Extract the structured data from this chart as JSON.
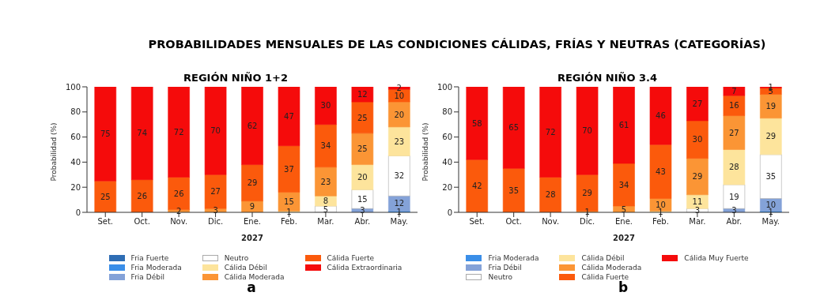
{
  "chart_data": [
    {
      "type": "bar",
      "title": "REGIÓN NIÑO 1+2",
      "xlabel": "2027",
      "ylabel": "Probabilidad (%)",
      "stacked": true,
      "data_labels": true,
      "legend": "bottom",
      "ylim": [
        0,
        100
      ],
      "yticks": [
        0,
        20,
        40,
        60,
        80,
        100
      ],
      "categories": [
        "Set.",
        "Oct.",
        "Nov.",
        "Dic.",
        "Ene.",
        "Feb.",
        "Mar.",
        "Abr.",
        "May."
      ],
      "annotations": [
        "PROBABILIDADES MENSUALES DE LAS CONDICIONES CÁLIDAS, FRÍAS Y NEUTRAS (CATEGORÍAS)",
        "a"
      ],
      "series": [
        {
          "name": "Fria Fuerte",
          "color": "#2e6db4",
          "values": [
            null,
            null,
            null,
            null,
            null,
            null,
            null,
            null,
            null
          ]
        },
        {
          "name": "Fria Moderada",
          "color": "#3a8ee8",
          "values": [
            null,
            null,
            null,
            null,
            null,
            null,
            null,
            null,
            1
          ]
        },
        {
          "name": "Fria Débil",
          "color": "#84a2d8",
          "values": [
            null,
            null,
            null,
            null,
            null,
            null,
            null,
            3,
            12
          ]
        },
        {
          "name": "Neutro",
          "color": "#ffffff",
          "values": [
            null,
            null,
            null,
            null,
            null,
            null,
            5,
            15,
            32
          ]
        },
        {
          "name": "Cálida Débil",
          "color": "#fde49c",
          "values": [
            null,
            null,
            null,
            null,
            null,
            1,
            8,
            20,
            23
          ]
        },
        {
          "name": "Cálida Moderada",
          "color": "#fb9535",
          "values": [
            null,
            null,
            2,
            3,
            9,
            15,
            23,
            25,
            20
          ]
        },
        {
          "name": "Cálida Fuerte",
          "color": "#fb5a0c",
          "values": [
            25,
            26,
            26,
            27,
            29,
            37,
            34,
            25,
            10
          ]
        },
        {
          "name": "Cálida Extraordinaria",
          "color": "#f50b0b",
          "values": [
            75,
            74,
            72,
            70,
            62,
            47,
            30,
            12,
            2
          ]
        }
      ]
    },
    {
      "type": "bar",
      "title": "REGIÓN NIÑO 3.4",
      "xlabel": "2027",
      "ylabel": "Probabilidad (%)",
      "stacked": true,
      "data_labels": true,
      "legend": "bottom",
      "ylim": [
        0,
        100
      ],
      "yticks": [
        0,
        20,
        40,
        60,
        80,
        100
      ],
      "categories": [
        "Set.",
        "Oct.",
        "Nov.",
        "Dic.",
        "Ene.",
        "Feb.",
        "Mar.",
        "Abr.",
        "May."
      ],
      "annotations": [
        "b"
      ],
      "series": [
        {
          "name": "Fria Moderada",
          "color": "#3a8ee8",
          "values": [
            null,
            null,
            null,
            null,
            null,
            null,
            null,
            null,
            1
          ]
        },
        {
          "name": "Fria Débil",
          "color": "#84a2d8",
          "values": [
            null,
            null,
            null,
            null,
            null,
            null,
            null,
            3,
            10
          ]
        },
        {
          "name": "Neutro",
          "color": "#ffffff",
          "values": [
            null,
            null,
            null,
            null,
            null,
            null,
            3,
            19,
            35
          ]
        },
        {
          "name": "Cálida Débil",
          "color": "#fde49c",
          "values": [
            null,
            null,
            null,
            null,
            null,
            1,
            11,
            28,
            29
          ]
        },
        {
          "name": "Cálida Moderada",
          "color": "#fb9535",
          "values": [
            null,
            null,
            null,
            1,
            5,
            10,
            29,
            27,
            19
          ]
        },
        {
          "name": "Cálida Fuerte",
          "color": "#fb5a0c",
          "values": [
            42,
            35,
            28,
            29,
            34,
            43,
            30,
            16,
            5
          ]
        },
        {
          "name": "Cálida Muy Fuerte",
          "color": "#f50b0b",
          "values": [
            58,
            65,
            72,
            70,
            61,
            46,
            27,
            7,
            1
          ]
        }
      ]
    }
  ]
}
